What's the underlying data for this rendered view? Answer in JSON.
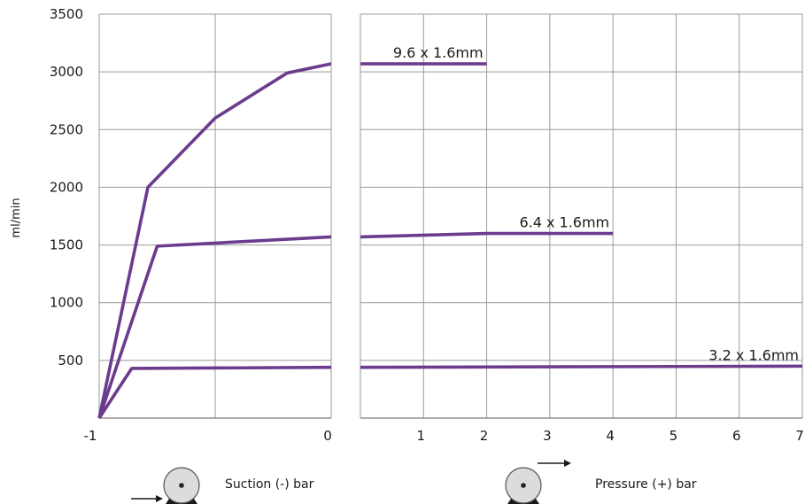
{
  "chart_data": {
    "type": "line",
    "ylabel": "ml/min",
    "suction_axis": {
      "label": "Suction (-) bar",
      "ticks": [
        "-1",
        "0"
      ],
      "xlim": [
        -1,
        0
      ]
    },
    "pressure_axis": {
      "label": "Pressure (+) bar",
      "ticks": [
        "1",
        "2",
        "3",
        "4",
        "5",
        "6",
        "7"
      ],
      "xlim": [
        0,
        7
      ]
    },
    "yticks": [
      "3500",
      "3000",
      "2500",
      "2000",
      "1500",
      "1000",
      "500"
    ],
    "ylim": [
      0,
      3500
    ],
    "grid": true,
    "series": [
      {
        "name": "9.6 x 1.6mm",
        "suction": [
          [
            -1,
            0
          ],
          [
            -0.79,
            2000
          ],
          [
            -0.5,
            2600
          ],
          [
            -0.19,
            2990
          ],
          [
            0,
            3070
          ]
        ],
        "pressure": [
          [
            0,
            3070
          ],
          [
            2,
            3070
          ]
        ]
      },
      {
        "name": "6.4 x 1.6mm",
        "suction": [
          [
            -1,
            0
          ],
          [
            -0.75,
            1490
          ],
          [
            0,
            1570
          ]
        ],
        "pressure": [
          [
            0,
            1570
          ],
          [
            2,
            1600
          ],
          [
            4,
            1600
          ]
        ]
      },
      {
        "name": "3.2 x 1.6mm",
        "suction": [
          [
            -1,
            0
          ],
          [
            -0.86,
            430
          ],
          [
            0,
            440
          ]
        ],
        "pressure": [
          [
            0,
            440
          ],
          [
            7,
            450
          ]
        ]
      }
    ]
  },
  "colors": {
    "series": "#6b3b8e",
    "grid": "#9a9a9a"
  },
  "icons": [
    "pump-wheel-icon",
    "arrow-right-icon"
  ]
}
